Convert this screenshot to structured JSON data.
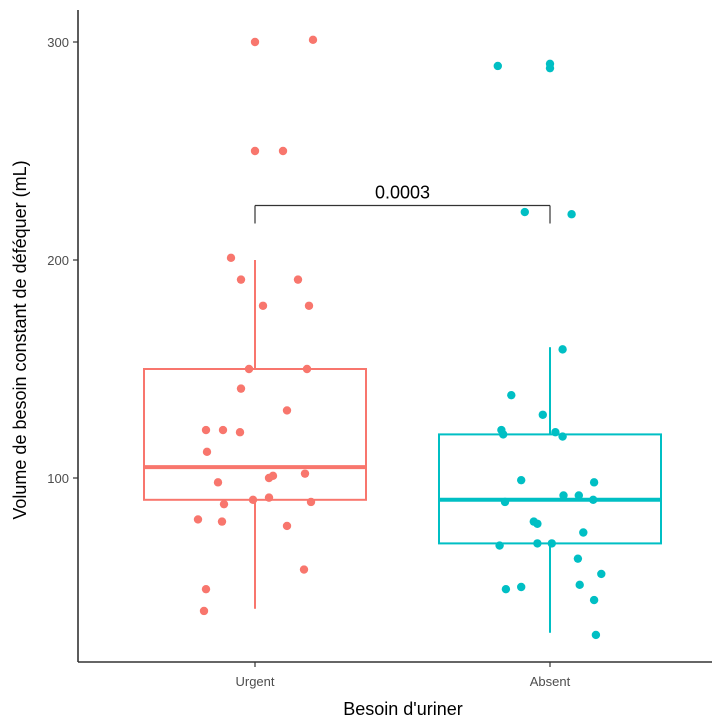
{
  "chart_data": {
    "type": "boxplot",
    "xlabel": "Besoin d'uriner",
    "ylabel": "Volume de besoin constant de déféquer (mL)",
    "ylim": [
      20,
      316
    ],
    "yticks": [
      100,
      200,
      300
    ],
    "categories": [
      "Urgent",
      "Absent"
    ],
    "grid": false,
    "legend": "none",
    "colors": {
      "Urgent": "#F8766D",
      "Absent": "#00BFC4"
    },
    "boxes": [
      {
        "category": "Urgent",
        "min": 40,
        "q1": 90,
        "median": 105,
        "q3": 150,
        "max": 200
      },
      {
        "category": "Absent",
        "min": 29,
        "q1": 70,
        "median": 90,
        "q3": 120,
        "max": 160
      }
    ],
    "points": [
      {
        "category": "Urgent",
        "values": [
          300,
          301,
          250,
          250,
          201,
          191,
          191,
          179,
          179,
          150,
          150,
          141,
          131,
          122,
          122,
          121,
          112,
          102,
          101,
          100,
          98,
          91,
          90,
          89,
          88,
          81,
          80,
          78,
          58,
          49,
          39
        ]
      },
      {
        "category": "Absent",
        "values": [
          290,
          289,
          288,
          222,
          221,
          159,
          138,
          129,
          122,
          121,
          120,
          119,
          99,
          98,
          92,
          92,
          90,
          89,
          80,
          79,
          75,
          70,
          70,
          69,
          63,
          56,
          51,
          50,
          49,
          44,
          28
        ]
      }
    ],
    "annotation": {
      "text": "0.0003",
      "y": 225
    }
  }
}
